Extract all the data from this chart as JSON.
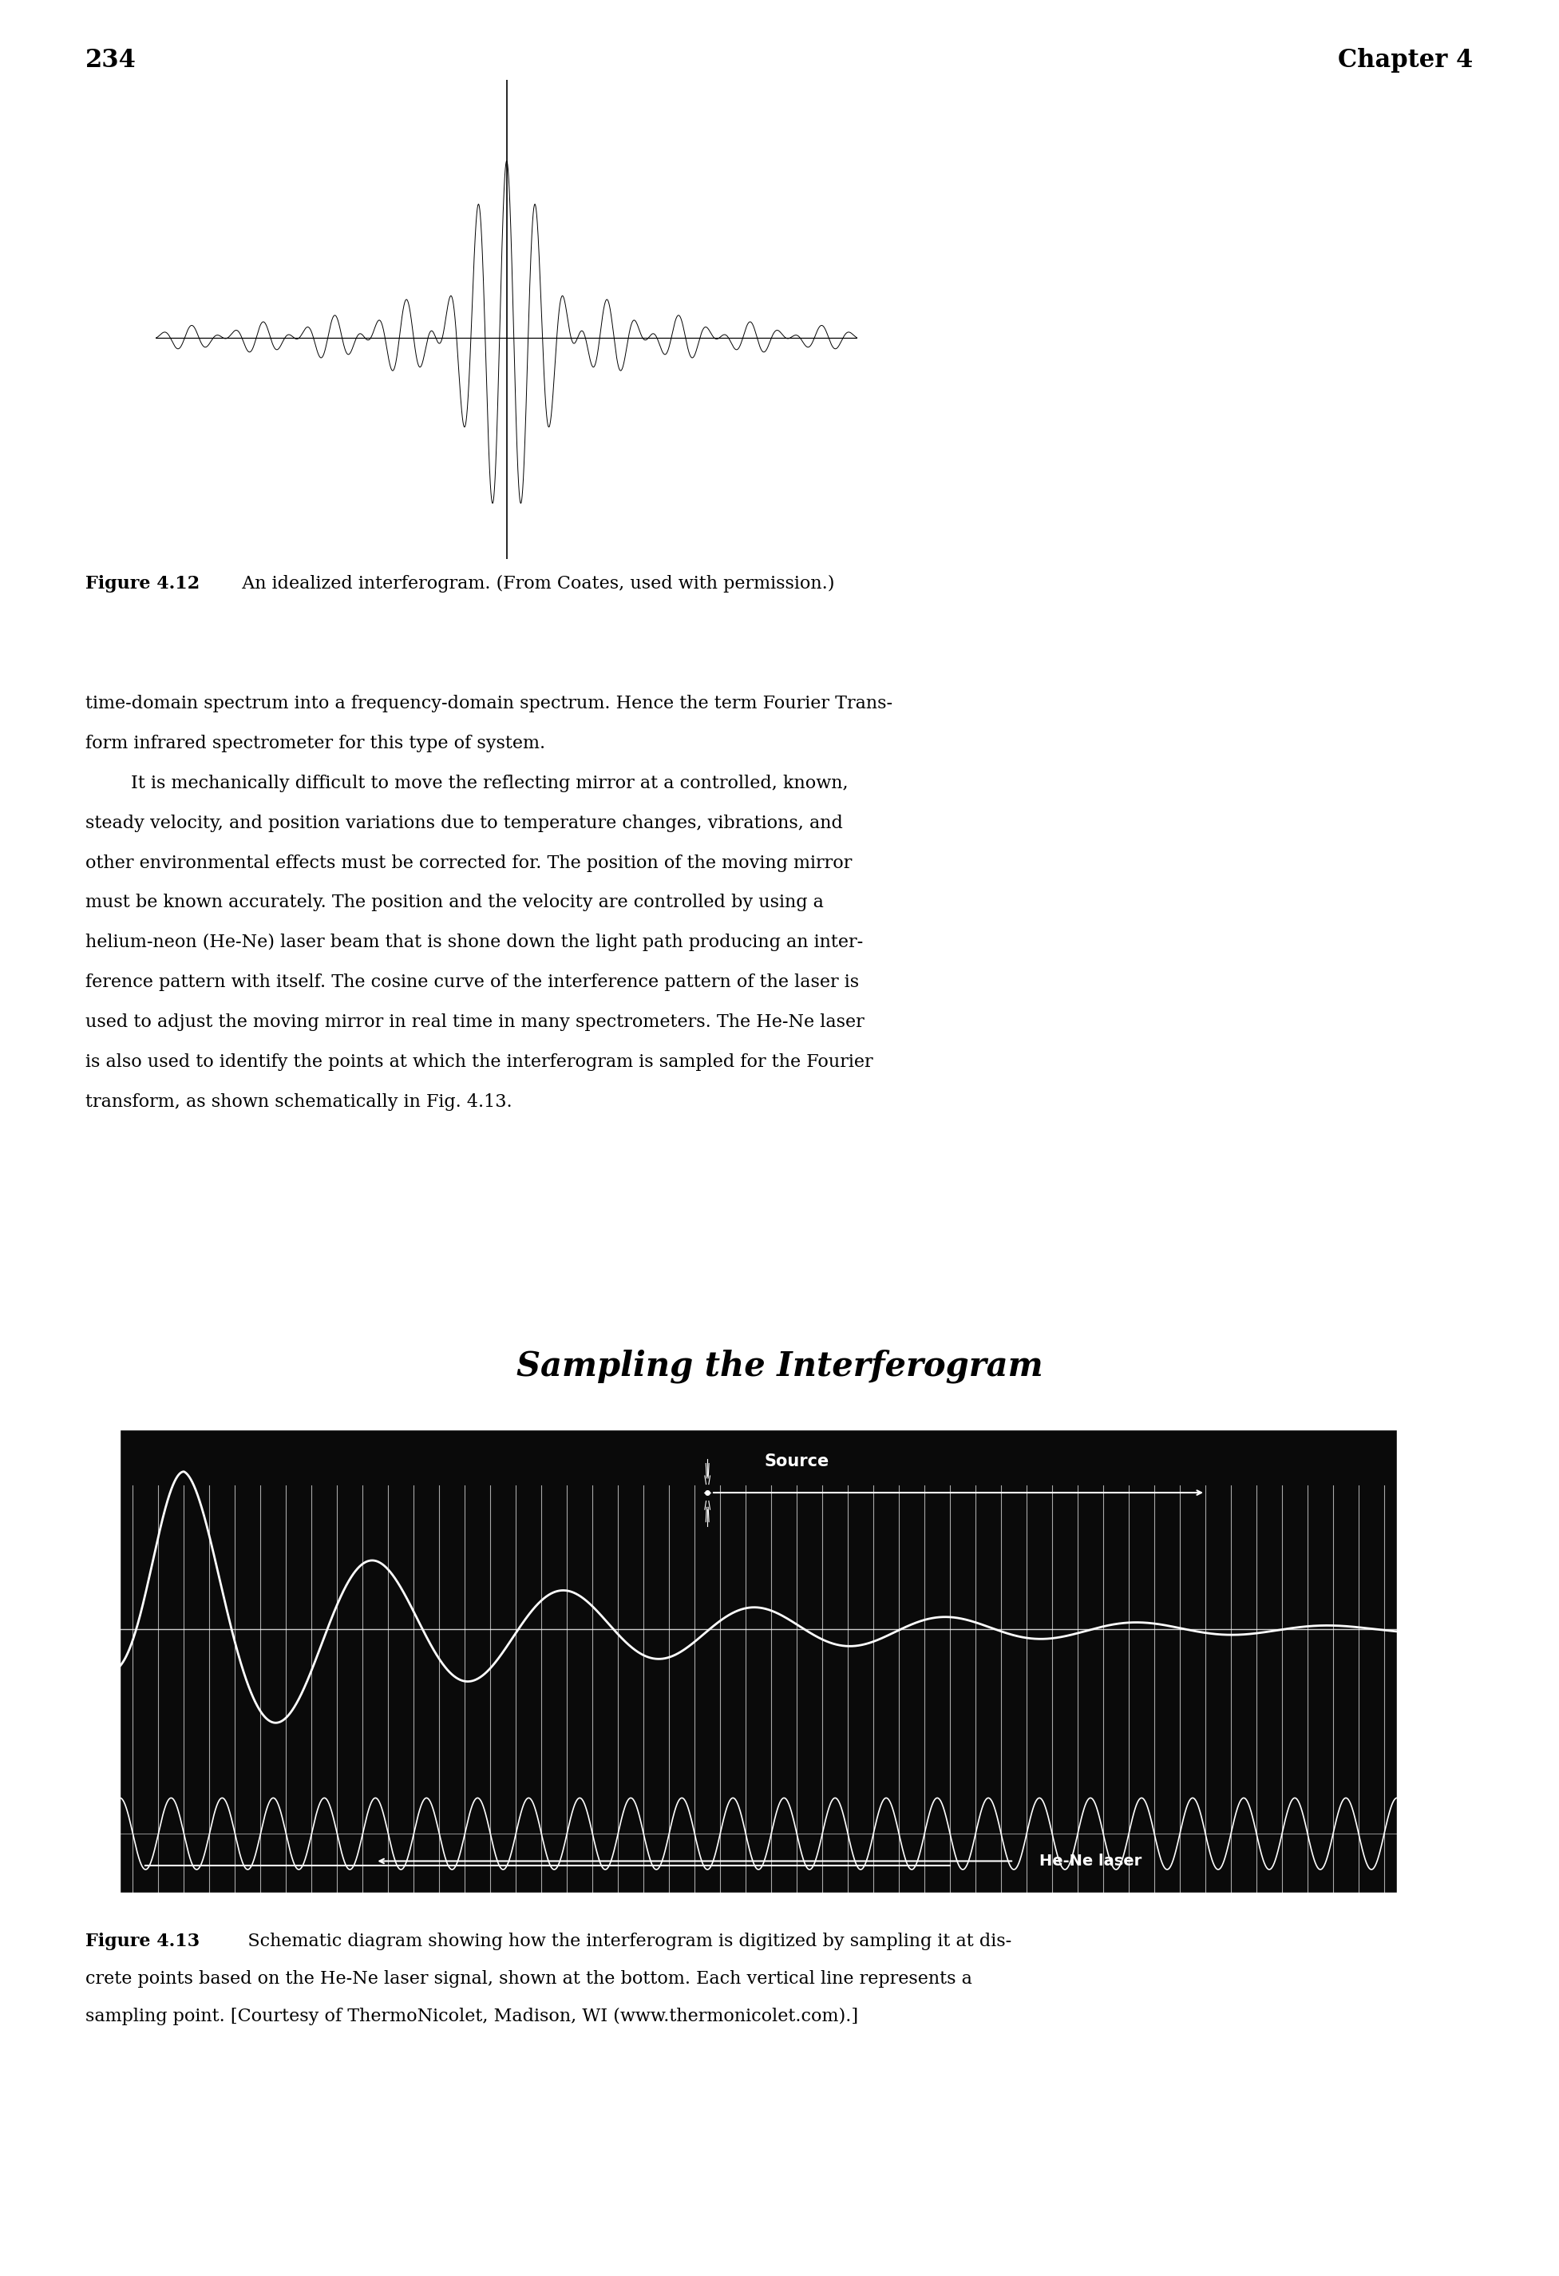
{
  "page_number": "234",
  "chapter_header": "Chapter 4",
  "background_color": "#ffffff",
  "text_color": "#000000",
  "fig412_caption_bold": "Figure 4.12",
  "fig412_caption_rest": "   An idealized interferogram. (From Coates, used with permission.)",
  "fig413_title": "Sampling the Interferogram",
  "fig413_caption_bold": "Figure 4.13",
  "fig413_caption_rest": "   Schematic diagram showing how the interferogram is digitized by sampling it at discrete points based on the He-Ne laser signal, shown at the bottom. Each vertical line represents a sampling point. [Courtesy of ThermoNicolet, Madison, WI (www.thermonicolet.com).]",
  "body_text_para1": [
    "time-domain spectrum into a frequency-domain spectrum. Hence the term Fourier Trans-",
    "form infrared spectrometer for this type of system."
  ],
  "body_text_para2": [
    "        It is mechanically difficult to move the reflecting mirror at a controlled, known,",
    "steady velocity, and position variations due to temperature changes, vibrations, and",
    "other environmental effects must be corrected for. The position of the moving mirror",
    "must be known accurately. The position and the velocity are controlled by using a",
    "helium-neon (He-Ne) laser beam that is shone down the light path producing an inter-",
    "ference pattern with itself. The cosine curve of the interference pattern of the laser is",
    "used to adjust the moving mirror in real time in many spectrometers. The He-Ne laser",
    "is also used to identify the points at which the interferogram is sampled for the Fourier",
    "transform, as shown schematically in Fig. 4.13."
  ],
  "dark_bg": "#0a0a0a",
  "source_label": "Source",
  "hene_label": "He-Ne laser"
}
